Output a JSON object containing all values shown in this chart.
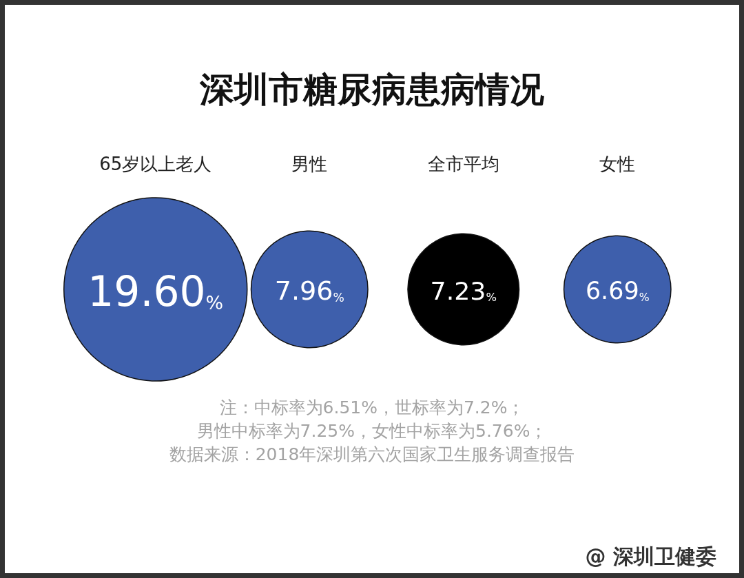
{
  "chart_data": {
    "type": "other",
    "title": "深圳市糖尿病患病情况",
    "categories": [
      "65岁以上老人",
      "男性",
      "全市平均",
      "女性"
    ],
    "values": [
      19.6,
      7.96,
      7.23,
      6.69
    ],
    "colors": [
      "#3e5fac",
      "#3e5fac",
      "#000000",
      "#3e5fac"
    ],
    "value_labels": [
      "19.60%",
      "7.96%",
      "7.23%",
      "6.69%"
    ],
    "annotations": [
      "注：中标率为6.51%，世标率为7.2%；",
      "男性中标率为7.25%，女性中标率为5.76%；",
      "数据来源：2018年深圳第六次国家卫生服务调查报告",
      "@ 深圳卫健委"
    ]
  }
}
